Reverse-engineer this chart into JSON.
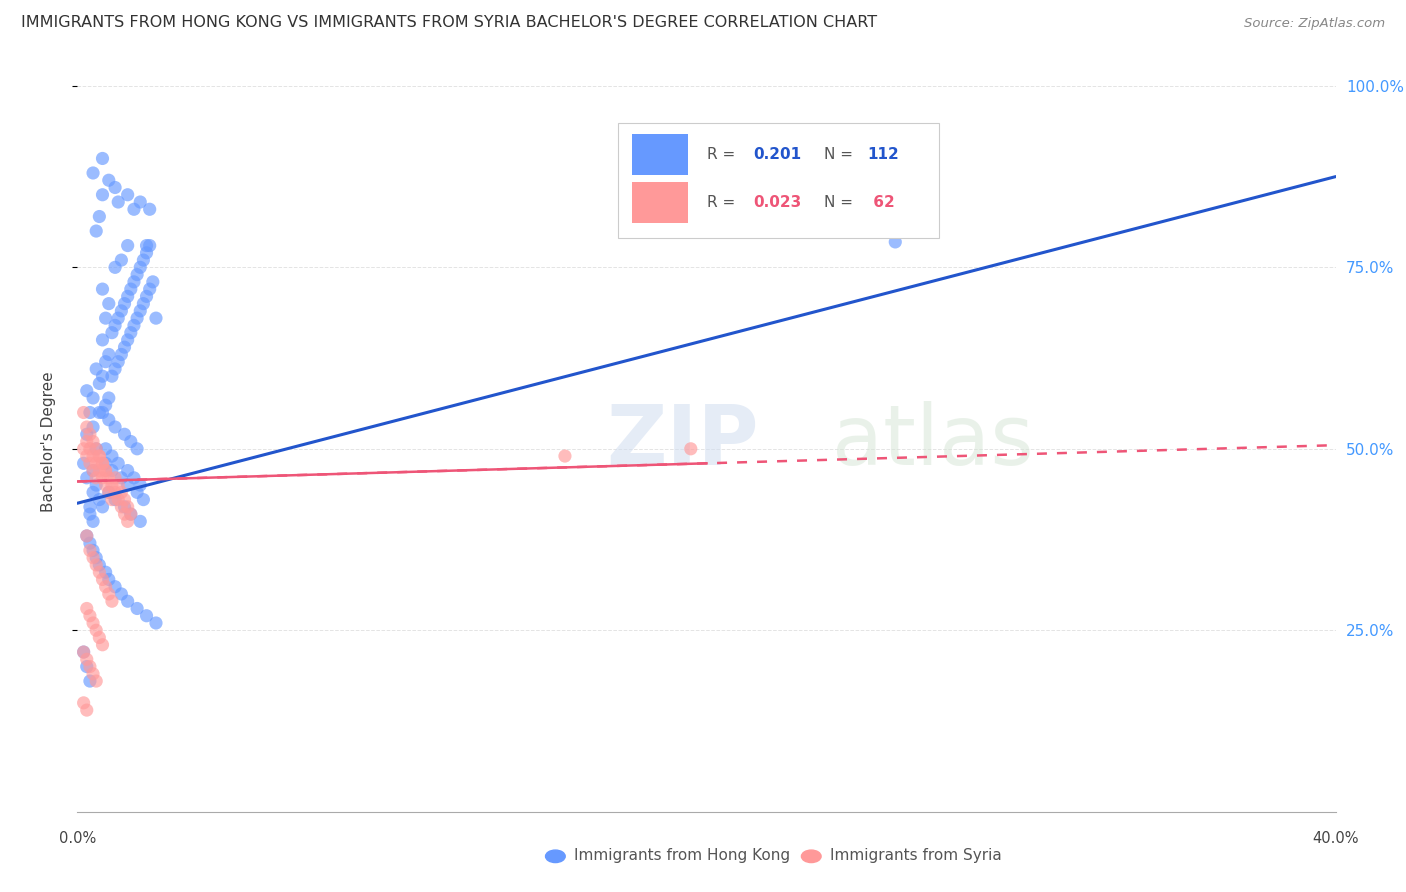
{
  "title": "IMMIGRANTS FROM HONG KONG VS IMMIGRANTS FROM SYRIA BACHELOR'S DEGREE CORRELATION CHART",
  "source_text": "Source: ZipAtlas.com",
  "ylabel": "Bachelor's Degree",
  "xlim": [
    0.0,
    0.4
  ],
  "ylim": [
    0.0,
    1.02
  ],
  "ytick_labels": [
    "100.0%",
    "75.0%",
    "50.0%",
    "25.0%"
  ],
  "ytick_values": [
    1.0,
    0.75,
    0.5,
    0.25
  ],
  "color_hk": "#6699FF",
  "color_syria": "#FF9999",
  "color_hk_line": "#2255CC",
  "color_syria_line": "#EE5577",
  "color_right_axis": "#4499FF",
  "hk_scatter_x": [
    0.002,
    0.003,
    0.004,
    0.004,
    0.005,
    0.005,
    0.005,
    0.006,
    0.006,
    0.007,
    0.007,
    0.008,
    0.008,
    0.008,
    0.009,
    0.009,
    0.009,
    0.01,
    0.01,
    0.01,
    0.011,
    0.011,
    0.012,
    0.012,
    0.012,
    0.013,
    0.013,
    0.014,
    0.014,
    0.014,
    0.015,
    0.015,
    0.016,
    0.016,
    0.016,
    0.017,
    0.017,
    0.018,
    0.018,
    0.019,
    0.019,
    0.02,
    0.02,
    0.021,
    0.021,
    0.022,
    0.022,
    0.023,
    0.023,
    0.024,
    0.003,
    0.005,
    0.007,
    0.008,
    0.009,
    0.01,
    0.011,
    0.012,
    0.013,
    0.015,
    0.016,
    0.017,
    0.018,
    0.019,
    0.02,
    0.003,
    0.004,
    0.005,
    0.006,
    0.008,
    0.009,
    0.01,
    0.011,
    0.012,
    0.014,
    0.015,
    0.016,
    0.017,
    0.019,
    0.02,
    0.021,
    0.006,
    0.007,
    0.008,
    0.013,
    0.018,
    0.022,
    0.025,
    0.003,
    0.004,
    0.005,
    0.006,
    0.007,
    0.009,
    0.01,
    0.012,
    0.014,
    0.016,
    0.019,
    0.022,
    0.025,
    0.005,
    0.008,
    0.01,
    0.012,
    0.016,
    0.02,
    0.023,
    0.26,
    0.002,
    0.003,
    0.004
  ],
  "hk_scatter_y": [
    0.48,
    0.52,
    0.55,
    0.42,
    0.47,
    0.53,
    0.57,
    0.5,
    0.61,
    0.55,
    0.59,
    0.6,
    0.65,
    0.72,
    0.56,
    0.62,
    0.68,
    0.57,
    0.63,
    0.7,
    0.6,
    0.66,
    0.61,
    0.67,
    0.75,
    0.62,
    0.68,
    0.63,
    0.69,
    0.76,
    0.64,
    0.7,
    0.65,
    0.71,
    0.78,
    0.66,
    0.72,
    0.67,
    0.73,
    0.68,
    0.74,
    0.69,
    0.75,
    0.7,
    0.76,
    0.71,
    0.77,
    0.72,
    0.78,
    0.73,
    0.46,
    0.44,
    0.43,
    0.55,
    0.5,
    0.54,
    0.49,
    0.53,
    0.48,
    0.52,
    0.47,
    0.51,
    0.46,
    0.5,
    0.45,
    0.58,
    0.41,
    0.4,
    0.45,
    0.42,
    0.48,
    0.44,
    0.47,
    0.43,
    0.46,
    0.42,
    0.45,
    0.41,
    0.44,
    0.4,
    0.43,
    0.8,
    0.82,
    0.85,
    0.84,
    0.83,
    0.78,
    0.68,
    0.38,
    0.37,
    0.36,
    0.35,
    0.34,
    0.33,
    0.32,
    0.31,
    0.3,
    0.29,
    0.28,
    0.27,
    0.26,
    0.88,
    0.9,
    0.87,
    0.86,
    0.85,
    0.84,
    0.83,
    0.785,
    0.22,
    0.2,
    0.18
  ],
  "syria_scatter_x": [
    0.002,
    0.003,
    0.003,
    0.004,
    0.004,
    0.005,
    0.005,
    0.006,
    0.006,
    0.007,
    0.007,
    0.008,
    0.008,
    0.009,
    0.009,
    0.01,
    0.01,
    0.011,
    0.011,
    0.012,
    0.012,
    0.013,
    0.013,
    0.014,
    0.014,
    0.015,
    0.015,
    0.016,
    0.016,
    0.017,
    0.003,
    0.004,
    0.005,
    0.006,
    0.007,
    0.008,
    0.009,
    0.01,
    0.011,
    0.002,
    0.003,
    0.004,
    0.005,
    0.006,
    0.007,
    0.008,
    0.009,
    0.003,
    0.004,
    0.005,
    0.006,
    0.007,
    0.008,
    0.002,
    0.003,
    0.004,
    0.005,
    0.006,
    0.002,
    0.003,
    0.155,
    0.195
  ],
  "syria_scatter_y": [
    0.5,
    0.49,
    0.51,
    0.48,
    0.5,
    0.47,
    0.49,
    0.46,
    0.48,
    0.47,
    0.49,
    0.46,
    0.48,
    0.45,
    0.47,
    0.44,
    0.46,
    0.43,
    0.45,
    0.44,
    0.46,
    0.43,
    0.45,
    0.42,
    0.44,
    0.41,
    0.43,
    0.4,
    0.42,
    0.41,
    0.38,
    0.36,
    0.35,
    0.34,
    0.33,
    0.32,
    0.31,
    0.3,
    0.29,
    0.55,
    0.53,
    0.52,
    0.51,
    0.5,
    0.49,
    0.48,
    0.47,
    0.28,
    0.27,
    0.26,
    0.25,
    0.24,
    0.23,
    0.22,
    0.21,
    0.2,
    0.19,
    0.18,
    0.15,
    0.14,
    0.49,
    0.5
  ],
  "hk_line_x": [
    0.0,
    0.4
  ],
  "hk_line_y": [
    0.425,
    0.875
  ],
  "syria_line_x": [
    0.0,
    0.4
  ],
  "syria_line_y": [
    0.455,
    0.505
  ],
  "background_color": "#FFFFFF",
  "grid_color": "#DDDDDD"
}
